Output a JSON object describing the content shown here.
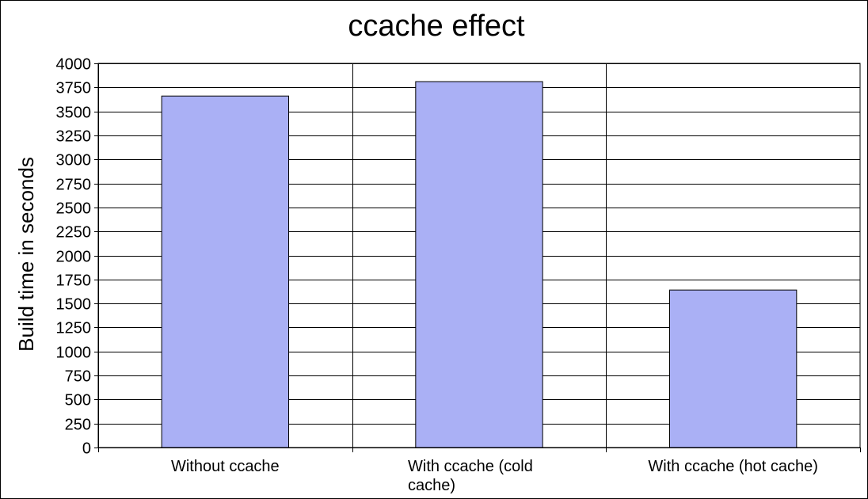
{
  "chart_data": {
    "type": "bar",
    "title": "ccache effect",
    "xlabel": "",
    "ylabel": "Build time in seconds",
    "ylim": [
      0,
      4000
    ],
    "ytick_step": 250,
    "yticks": [
      "0",
      "250",
      "500",
      "750",
      "1000",
      "1250",
      "1500",
      "1750",
      "2000",
      "2250",
      "2500",
      "2750",
      "3000",
      "3250",
      "3500",
      "3750",
      "4000"
    ],
    "categories": [
      "Without ccache",
      "With ccache (cold cache)",
      "With ccache (hot cache)"
    ],
    "category_label_lines": [
      [
        "Without ccache"
      ],
      [
        "With ccache (cold",
        "cache)"
      ],
      [
        "With ccache (hot cache)"
      ]
    ],
    "values": [
      3660,
      3810,
      1640
    ],
    "grid": true,
    "legend": "none",
    "colors": {
      "bar_fill": "#aab0f5",
      "bar_stroke": "#000000",
      "grid": "#000000",
      "background": "#ffffff"
    }
  }
}
